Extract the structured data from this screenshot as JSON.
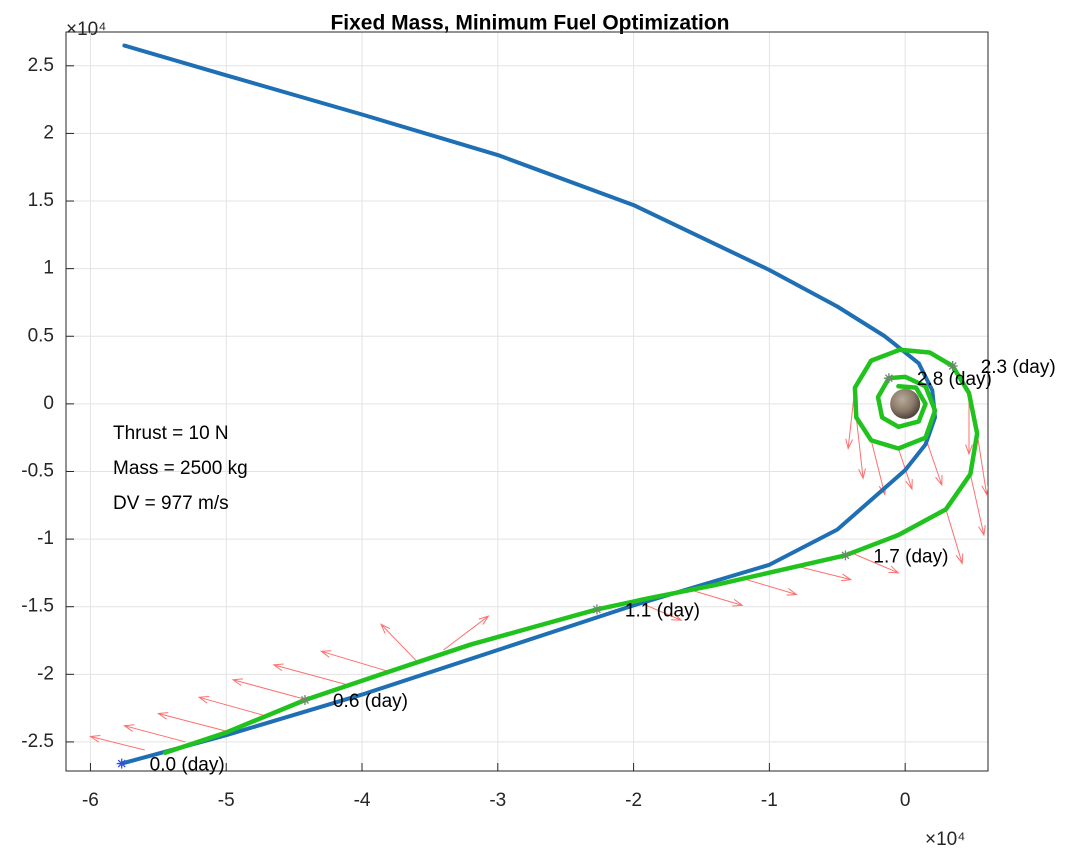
{
  "chart_data": {
    "type": "line",
    "title": "Fixed Mass, Minimum Fuel Optimization",
    "x_exponent_label": "×10⁴",
    "y_exponent_label": "×10⁴",
    "xlim": [
      -6.18,
      0.61
    ],
    "ylim": [
      -2.715,
      2.75
    ],
    "xticks": [
      -6,
      -5,
      -4,
      -3,
      -2,
      -1,
      0
    ],
    "yticks": [
      -2.5,
      -2,
      -1.5,
      -1,
      -0.5,
      0,
      0.5,
      1,
      1.5,
      2,
      2.5
    ],
    "grid": true,
    "annotations": [
      "Thrust = 10 N",
      "Mass = 2500 kg",
      "DV = 977 m/s"
    ],
    "series": [
      {
        "color": "#1f6fb5",
        "x": [
          -5.75,
          -5.0,
          -4.0,
          -3.0,
          -2.0,
          -1.0,
          -0.5,
          -0.15,
          0.1,
          0.2,
          0.22,
          0.15,
          0.0,
          -0.5,
          -1.0,
          -2.0,
          -3.0,
          -4.0,
          -5.0,
          -5.77
        ],
        "values": [
          2.65,
          2.43,
          2.14,
          1.84,
          1.47,
          0.99,
          0.72,
          0.5,
          0.3,
          0.1,
          -0.1,
          -0.3,
          -0.49,
          -0.93,
          -1.19,
          -1.49,
          -1.82,
          -2.15,
          -2.45,
          -2.66
        ]
      },
      {
        "color": "#22c21e",
        "x": [
          -5.45,
          -5.0,
          -4.42,
          -3.8,
          -3.2,
          -2.7,
          -2.27,
          -1.9,
          -1.4,
          -0.92,
          -0.44,
          -0.05,
          0.3,
          0.48,
          0.53,
          0.47,
          0.35,
          0.18,
          -0.04,
          -0.25,
          -0.37,
          -0.36,
          -0.25,
          -0.05,
          0.15,
          0.22,
          0.15,
          0.0,
          -0.12,
          -0.2,
          -0.17,
          -0.05,
          0.1,
          0.15,
          0.08,
          -0.05
        ],
        "values": [
          -2.58,
          -2.43,
          -2.19,
          -1.98,
          -1.78,
          -1.64,
          -1.52,
          -1.44,
          -1.34,
          -1.23,
          -1.12,
          -0.97,
          -0.78,
          -0.52,
          -0.22,
          0.08,
          0.28,
          0.38,
          0.4,
          0.32,
          0.12,
          -0.1,
          -0.27,
          -0.33,
          -0.25,
          -0.05,
          0.13,
          0.2,
          0.19,
          0.05,
          -0.1,
          -0.17,
          -0.13,
          0.0,
          0.12,
          0.13
        ]
      }
    ],
    "time_markers": {
      "x": [
        -5.77,
        -4.42,
        -2.27,
        -0.44,
        0.35,
        -0.12
      ],
      "y": [
        -2.66,
        -2.19,
        -1.52,
        -1.12,
        0.28,
        0.19
      ],
      "labels": [
        "0.0 (day)",
        "0.6 (day)",
        "1.1 (day)",
        "1.7 (day)",
        "2.3 (day)",
        "2.8 (day)"
      ]
    },
    "thrust_arrows": {
      "x": [
        -5.6,
        -5.3,
        -5.0,
        -4.7,
        -4.4,
        -4.1,
        -3.8,
        -3.6,
        -3.4,
        -2.0,
        -1.6,
        -1.2,
        -0.8,
        -0.4,
        0.3,
        0.48,
        0.53,
        0.47,
        -0.37,
        -0.36,
        -0.25,
        -0.05,
        0.15
      ],
      "y": [
        -2.56,
        -2.5,
        -2.42,
        -2.31,
        -2.19,
        -2.08,
        -1.98,
        -1.9,
        -1.82,
        -1.45,
        -1.37,
        -1.29,
        -1.2,
        -1.1,
        -0.78,
        -0.52,
        -0.22,
        0.08,
        0.12,
        -0.1,
        -0.27,
        -0.33,
        -0.25
      ],
      "u": [
        -0.4,
        -0.45,
        -0.5,
        -0.5,
        -0.55,
        -0.55,
        -0.5,
        -0.26,
        0.33,
        0.35,
        0.4,
        0.4,
        0.4,
        0.35,
        0.12,
        0.1,
        0.07,
        0.0,
        -0.05,
        0.05,
        0.1,
        0.1,
        0.12
      ],
      "v": [
        0.1,
        0.12,
        0.13,
        0.14,
        0.15,
        0.15,
        0.15,
        0.27,
        0.25,
        -0.15,
        -0.12,
        -0.12,
        -0.1,
        -0.15,
        -0.4,
        -0.45,
        -0.45,
        -0.45,
        -0.45,
        -0.45,
        -0.4,
        -0.3,
        -0.35
      ]
    }
  }
}
